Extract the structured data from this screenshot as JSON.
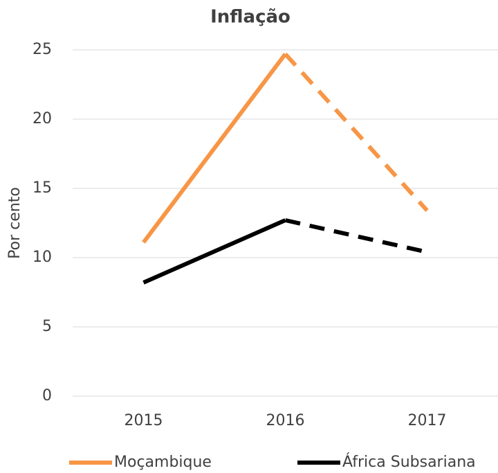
{
  "chart_data": {
    "type": "line",
    "title": "Inflação",
    "y_label": "Por cento",
    "categories": [
      "2015",
      "2016",
      "2017"
    ],
    "series": [
      {
        "name": "Moçambique",
        "color": "#f79646",
        "values": [
          11.1,
          24.7,
          13.4
        ]
      },
      {
        "name": "África Subsariana",
        "color": "#000000",
        "values": [
          8.2,
          12.7,
          10.4
        ]
      }
    ],
    "projection_from": "2016",
    "ylim": [
      0,
      25
    ],
    "yticks": [
      0,
      5,
      10,
      15,
      20,
      25
    ],
    "grid": true,
    "legend": "bottom"
  }
}
